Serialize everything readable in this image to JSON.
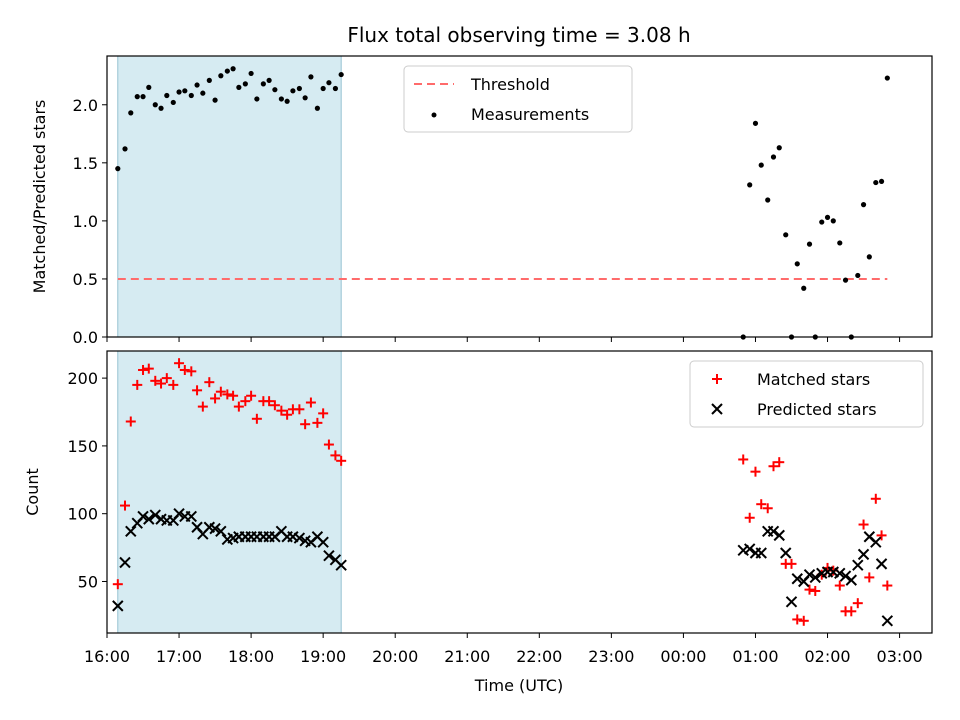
{
  "title": "Flux total observing time = 3.08 h",
  "colors": {
    "threshold": "#ff6b6b",
    "measurement": "#000000",
    "matched": "#ff0000",
    "predicted": "#000000",
    "shade": "#add8e6"
  },
  "chart_data": [
    {
      "type": "scatter",
      "panel": "top",
      "ylabel": "Matched/Predicted stars",
      "xlabel": "",
      "xlim": [
        16.0,
        27.45
      ],
      "ylim": [
        0.0,
        2.42
      ],
      "yticks": [
        0.0,
        0.5,
        1.0,
        1.5,
        2.0
      ],
      "ytick_labels": [
        "0.0",
        "0.5",
        "1.0",
        "1.5",
        "2.0"
      ],
      "shaded_span": [
        16.15,
        19.25
      ],
      "legend": {
        "location": "upper center",
        "entries": [
          "Threshold",
          "Measurements"
        ]
      },
      "threshold": {
        "name": "Threshold",
        "y": 0.5,
        "x_range": [
          16.15,
          26.83
        ]
      },
      "series": [
        {
          "name": "Measurements",
          "x": [
            16.15,
            16.25,
            16.33,
            16.42,
            16.5,
            16.58,
            16.67,
            16.75,
            16.83,
            16.92,
            17.0,
            17.08,
            17.17,
            17.25,
            17.33,
            17.42,
            17.5,
            17.58,
            17.67,
            17.75,
            17.83,
            17.92,
            18.0,
            18.08,
            18.17,
            18.25,
            18.33,
            18.42,
            18.5,
            18.58,
            18.67,
            18.75,
            18.83,
            18.92,
            19.0,
            19.08,
            19.17,
            19.25,
            24.83,
            24.92,
            25.0,
            25.08,
            25.17,
            25.25,
            25.33,
            25.42,
            25.5,
            25.58,
            25.67,
            25.75,
            25.83,
            25.92,
            26.0,
            26.08,
            26.17,
            26.25,
            26.33,
            26.42,
            26.5,
            26.58,
            26.67,
            26.75,
            26.83
          ],
          "y": [
            1.45,
            1.62,
            1.93,
            2.07,
            2.07,
            2.15,
            2.0,
            1.97,
            2.08,
            2.02,
            2.11,
            2.12,
            2.08,
            2.17,
            2.1,
            2.21,
            2.04,
            2.25,
            2.29,
            2.31,
            2.15,
            2.18,
            2.27,
            2.05,
            2.18,
            2.21,
            2.13,
            2.05,
            2.03,
            2.12,
            2.14,
            2.06,
            2.24,
            1.97,
            2.14,
            2.19,
            2.14,
            2.26,
            0.0,
            1.31,
            1.84,
            1.48,
            1.18,
            1.55,
            1.63,
            0.88,
            0.0,
            0.63,
            0.42,
            0.8,
            0.0,
            0.99,
            1.03,
            1.0,
            0.81,
            0.49,
            0.0,
            0.53,
            1.14,
            0.69,
            1.33,
            1.34,
            2.23
          ]
        }
      ]
    },
    {
      "type": "scatter",
      "panel": "bottom",
      "ylabel": "Count",
      "xlabel": "Time (UTC)",
      "xlim": [
        16.0,
        27.45
      ],
      "ylim": [
        12,
        220
      ],
      "yticks": [
        50,
        100,
        150,
        200
      ],
      "ytick_labels": [
        "50",
        "100",
        "150",
        "200"
      ],
      "xticks": [
        16,
        17,
        18,
        19,
        20,
        21,
        22,
        23,
        24,
        25,
        26,
        27
      ],
      "xtick_labels": [
        "16:00",
        "17:00",
        "18:00",
        "19:00",
        "20:00",
        "21:00",
        "22:00",
        "23:00",
        "00:00",
        "01:00",
        "02:00",
        "03:00"
      ],
      "shaded_span": [
        16.15,
        19.25
      ],
      "legend": {
        "location": "upper right",
        "entries": [
          "Matched stars",
          "Predicted stars"
        ]
      },
      "series": [
        {
          "name": "Matched stars",
          "marker": "+",
          "x": [
            16.15,
            16.25,
            16.33,
            16.42,
            16.5,
            16.58,
            16.67,
            16.75,
            16.83,
            16.92,
            17.0,
            17.08,
            17.17,
            17.25,
            17.33,
            17.42,
            17.5,
            17.58,
            17.67,
            17.75,
            17.83,
            17.92,
            18.0,
            18.08,
            18.17,
            18.25,
            18.33,
            18.42,
            18.5,
            18.58,
            18.67,
            18.75,
            18.83,
            18.92,
            19.0,
            19.08,
            19.17,
            19.25,
            24.83,
            24.92,
            25.0,
            25.08,
            25.17,
            25.25,
            25.33,
            25.42,
            25.5,
            25.58,
            25.67,
            25.75,
            25.83,
            25.92,
            26.0,
            26.08,
            26.17,
            26.25,
            26.33,
            26.42,
            26.5,
            26.58,
            26.67,
            26.75,
            26.83
          ],
          "y": [
            48,
            106,
            168,
            195,
            206,
            207,
            198,
            196,
            200,
            195,
            211,
            206,
            205,
            191,
            179,
            197,
            185,
            190,
            188,
            187,
            179,
            183,
            187,
            170,
            183,
            183,
            180,
            176,
            173,
            177,
            177,
            166,
            182,
            167,
            174,
            151,
            143,
            139,
            140,
            97,
            131,
            107,
            104,
            135,
            138,
            63,
            63,
            22,
            21,
            44,
            43,
            55,
            60,
            58,
            47,
            28,
            28,
            34,
            92,
            53,
            111,
            84,
            47
          ]
        },
        {
          "name": "Predicted stars",
          "marker": "x",
          "x": [
            16.15,
            16.25,
            16.33,
            16.42,
            16.5,
            16.58,
            16.67,
            16.75,
            16.83,
            16.92,
            17.0,
            17.08,
            17.17,
            17.25,
            17.33,
            17.42,
            17.5,
            17.58,
            17.67,
            17.75,
            17.83,
            17.92,
            18.0,
            18.08,
            18.17,
            18.25,
            18.33,
            18.42,
            18.5,
            18.58,
            18.67,
            18.75,
            18.83,
            18.92,
            19.0,
            19.08,
            19.17,
            19.25,
            24.83,
            24.92,
            25.0,
            25.08,
            25.17,
            25.25,
            25.33,
            25.42,
            25.5,
            25.58,
            25.67,
            25.75,
            25.83,
            25.92,
            26.0,
            26.08,
            26.17,
            26.25,
            26.33,
            26.42,
            26.5,
            26.58,
            26.67,
            26.75,
            26.83
          ],
          "y": [
            32,
            64,
            87,
            93,
            98,
            96,
            99,
            96,
            95,
            95,
            100,
            98,
            98,
            90,
            85,
            90,
            89,
            87,
            81,
            82,
            83,
            83,
            83,
            83,
            83,
            83,
            83,
            87,
            83,
            83,
            82,
            80,
            79,
            83,
            79,
            69,
            66,
            62,
            73,
            74,
            71,
            71,
            87,
            87,
            84,
            71,
            35,
            52,
            50,
            55,
            53,
            56,
            57,
            57,
            56,
            54,
            51,
            62,
            70,
            83,
            79,
            63,
            21
          ]
        }
      ]
    }
  ]
}
